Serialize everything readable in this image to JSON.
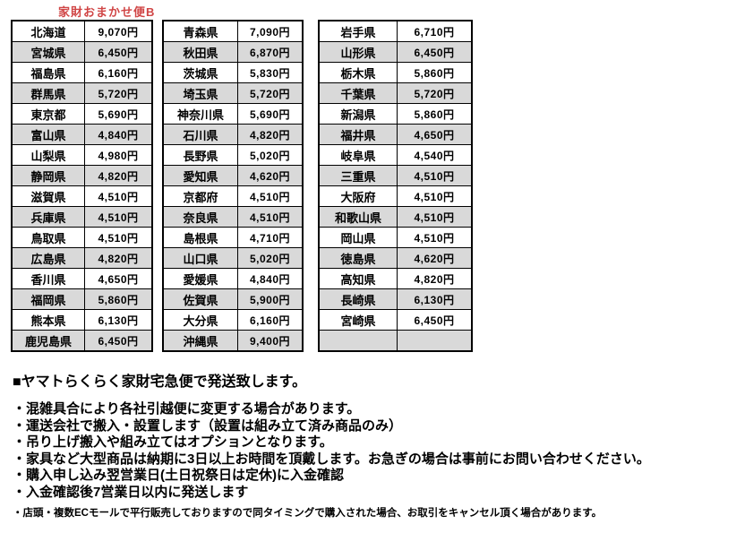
{
  "colors": {
    "title_red": "#d04545",
    "shaded_row": "#d9d9d9",
    "border": "#000000"
  },
  "shipping_table": {
    "title": "家財おまかせ便B",
    "groups": [
      {
        "rows": [
          [
            "北海道",
            "9,070円"
          ],
          [
            "宮城県",
            "6,450円"
          ],
          [
            "福島県",
            "6,160円"
          ],
          [
            "群馬県",
            "5,720円"
          ],
          [
            "東京都",
            "5,690円"
          ],
          [
            "富山県",
            "4,840円"
          ],
          [
            "山梨県",
            "4,980円"
          ],
          [
            "静岡県",
            "4,820円"
          ],
          [
            "滋賀県",
            "4,510円"
          ],
          [
            "兵庫県",
            "4,510円"
          ],
          [
            "鳥取県",
            "4,510円"
          ],
          [
            "広島県",
            "4,820円"
          ],
          [
            "香川県",
            "4,650円"
          ],
          [
            "福岡県",
            "5,860円"
          ],
          [
            "熊本県",
            "6,130円"
          ],
          [
            "鹿児島県",
            "6,450円"
          ]
        ]
      },
      {
        "rows": [
          [
            "青森県",
            "7,090円"
          ],
          [
            "秋田県",
            "6,870円"
          ],
          [
            "茨城県",
            "5,830円"
          ],
          [
            "埼玉県",
            "5,720円"
          ],
          [
            "神奈川県",
            "5,690円"
          ],
          [
            "石川県",
            "4,820円"
          ],
          [
            "長野県",
            "5,020円"
          ],
          [
            "愛知県",
            "4,620円"
          ],
          [
            "京都府",
            "4,510円"
          ],
          [
            "奈良県",
            "4,510円"
          ],
          [
            "島根県",
            "4,710円"
          ],
          [
            "山口県",
            "5,020円"
          ],
          [
            "愛媛県",
            "4,840円"
          ],
          [
            "佐賀県",
            "5,900円"
          ],
          [
            "大分県",
            "6,160円"
          ],
          [
            "沖縄県",
            "9,400円"
          ]
        ]
      },
      {
        "rows": [
          [
            "岩手県",
            "6,710円"
          ],
          [
            "山形県",
            "6,450円"
          ],
          [
            "栃木県",
            "5,860円"
          ],
          [
            "千葉県",
            "5,720円"
          ],
          [
            "新潟県",
            "5,860円"
          ],
          [
            "福井県",
            "4,650円"
          ],
          [
            "岐阜県",
            "4,540円"
          ],
          [
            "三重県",
            "4,510円"
          ],
          [
            "大阪府",
            "4,510円"
          ],
          [
            "和歌山県",
            "4,510円"
          ],
          [
            "岡山県",
            "4,510円"
          ],
          [
            "徳島県",
            "4,620円"
          ],
          [
            "高知県",
            "4,820円"
          ],
          [
            "長崎県",
            "6,130円"
          ],
          [
            "宮崎県",
            "6,450円"
          ],
          [
            "",
            ""
          ]
        ]
      }
    ]
  },
  "notes": {
    "heading": "■ヤマトらくらく家財宅急便で発送致します。",
    "bullets": [
      "・混雑具合により各社引越便に変更する場合があります。",
      "・運送会社で搬入・設置します（設置は組み立て済み商品のみ）",
      "・吊り上げ搬入や組み立てはオプションとなります。",
      "・家具など大型商品は納期に3日以上お時間を頂戴します。お急ぎの場合は事前にお問い合わせください。",
      "・購入申し込み翌営業日(土日祝祭日は定休)に入金確認",
      "・入金確認後7営業日以内に発送します"
    ],
    "footnote": "・店頭・複数ECモールで平行販売しておりますので同タイミングで購入された場合、お取引をキャンセル頂く場合があります。"
  }
}
